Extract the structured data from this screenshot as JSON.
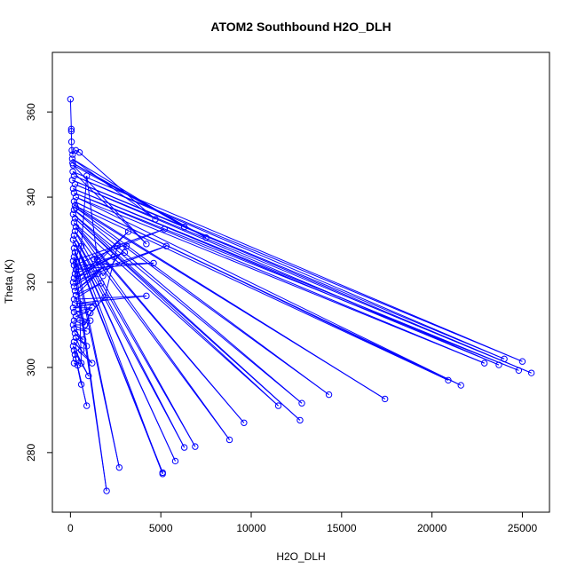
{
  "chart_data": {
    "type": "scatter",
    "title": "ATOM2 Southbound H2O_DLH",
    "xlabel": "H2O_DLH",
    "ylabel": "Theta (K)",
    "xlim": [
      -1000,
      26500
    ],
    "ylim": [
      266,
      374
    ],
    "x_ticks": [
      0,
      5000,
      10000,
      15000,
      20000,
      25000
    ],
    "y_ticks": [
      280,
      300,
      320,
      340,
      360
    ],
    "grid": false,
    "legend": "none",
    "series_color": "#0000ff",
    "connect_points": true,
    "points": [
      [
        0,
        363
      ],
      [
        50,
        356
      ],
      [
        50,
        355.5
      ],
      [
        60,
        353
      ],
      [
        80,
        351
      ],
      [
        120,
        350
      ],
      [
        300,
        351
      ],
      [
        500,
        350.5
      ],
      [
        4700,
        334.8
      ],
      [
        100,
        349
      ],
      [
        6300,
        333
      ],
      [
        120,
        348
      ],
      [
        7500,
        330.5
      ],
      [
        150,
        347.5
      ],
      [
        4200,
        329
      ],
      [
        130,
        346
      ],
      [
        25000,
        301.4
      ],
      [
        200,
        345
      ],
      [
        24000,
        302
      ],
      [
        100,
        344
      ],
      [
        25500,
        298.7
      ],
      [
        250,
        343
      ],
      [
        23700,
        300.6
      ],
      [
        150,
        342
      ],
      [
        24800,
        299.3
      ],
      [
        200,
        341
      ],
      [
        22900,
        301
      ],
      [
        300,
        340
      ],
      [
        21600,
        295.8
      ],
      [
        200,
        339
      ],
      [
        20900,
        297
      ],
      [
        250,
        338
      ],
      [
        17400,
        292.6
      ],
      [
        300,
        337.5
      ],
      [
        14300,
        293.6
      ],
      [
        200,
        337
      ],
      [
        12800,
        291.6
      ],
      [
        150,
        336
      ],
      [
        12700,
        287.6
      ],
      [
        250,
        335
      ],
      [
        11500,
        291
      ],
      [
        200,
        334
      ],
      [
        9600,
        287
      ],
      [
        300,
        333
      ],
      [
        8800,
        283
      ],
      [
        250,
        332
      ],
      [
        6900,
        281.4
      ],
      [
        200,
        331
      ],
      [
        6300,
        281.2
      ],
      [
        150,
        330
      ],
      [
        5800,
        278
      ],
      [
        300,
        329
      ],
      [
        5100,
        275
      ],
      [
        200,
        328
      ],
      [
        5100,
        275.3
      ],
      [
        250,
        327
      ],
      [
        2700,
        276.5
      ],
      [
        200,
        326
      ],
      [
        2000,
        271
      ],
      [
        150,
        325
      ],
      [
        5200,
        332.5
      ],
      [
        200,
        324
      ],
      [
        4600,
        324.5
      ],
      [
        300,
        323
      ],
      [
        3000,
        327
      ],
      [
        250,
        322
      ],
      [
        2400,
        326
      ],
      [
        200,
        321
      ],
      [
        5300,
        328.5
      ],
      [
        150,
        320
      ],
      [
        3200,
        331.9
      ],
      [
        200,
        319
      ],
      [
        1900,
        323.8
      ],
      [
        250,
        318
      ],
      [
        1500,
        322
      ],
      [
        300,
        317
      ],
      [
        1700,
        319.8
      ],
      [
        200,
        316
      ],
      [
        4200,
        316.8
      ],
      [
        250,
        315
      ],
      [
        1400,
        315
      ],
      [
        150,
        314
      ],
      [
        1200,
        314
      ],
      [
        200,
        313
      ],
      [
        1000,
        313
      ],
      [
        300,
        312
      ],
      [
        1100,
        311
      ],
      [
        200,
        311
      ],
      [
        800,
        310
      ],
      [
        150,
        310
      ],
      [
        900,
        308.5
      ],
      [
        200,
        309
      ],
      [
        700,
        306.5
      ],
      [
        250,
        308
      ],
      [
        900,
        305
      ],
      [
        300,
        307
      ],
      [
        600,
        304
      ],
      [
        200,
        306
      ],
      [
        1200,
        301
      ],
      [
        150,
        305
      ],
      [
        1000,
        298
      ],
      [
        200,
        304
      ],
      [
        600,
        296
      ],
      [
        250,
        303
      ],
      [
        900,
        291
      ],
      [
        300,
        302
      ],
      [
        400,
        300.5
      ],
      [
        200,
        301
      ],
      [
        600,
        301
      ],
      [
        500,
        315
      ],
      [
        800,
        310
      ],
      [
        1100,
        312.8
      ],
      [
        1900,
        316.5
      ],
      [
        2600,
        328.5
      ],
      [
        3100,
        328.5
      ],
      [
        1800,
        321.5
      ],
      [
        1300,
        325.5
      ],
      [
        1500,
        325.3
      ],
      [
        900,
        345
      ],
      [
        600,
        328.5
      ],
      [
        400,
        321.5
      ]
    ]
  }
}
